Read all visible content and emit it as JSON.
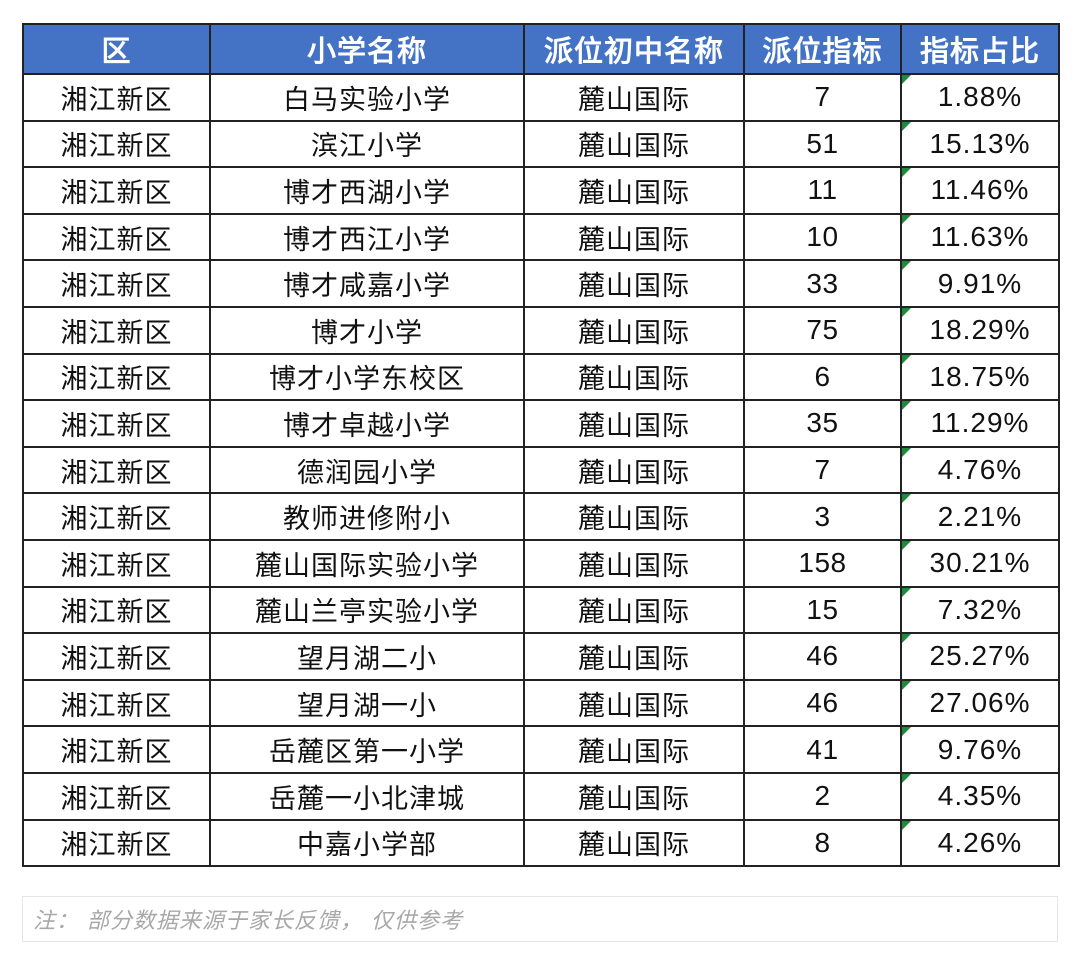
{
  "table": {
    "headers": [
      "区",
      "小学名称",
      "派位初中名称",
      "派位指标",
      "指标占比"
    ],
    "rows": [
      {
        "district": "湘江新区",
        "school": "白马实验小学",
        "middle": "麓山国际",
        "quota": "7",
        "ratio": "1.88%"
      },
      {
        "district": "湘江新区",
        "school": "滨江小学",
        "middle": "麓山国际",
        "quota": "51",
        "ratio": "15.13%"
      },
      {
        "district": "湘江新区",
        "school": "博才西湖小学",
        "middle": "麓山国际",
        "quota": "11",
        "ratio": "11.46%"
      },
      {
        "district": "湘江新区",
        "school": "博才西江小学",
        "middle": "麓山国际",
        "quota": "10",
        "ratio": "11.63%"
      },
      {
        "district": "湘江新区",
        "school": "博才咸嘉小学",
        "middle": "麓山国际",
        "quota": "33",
        "ratio": "9.91%"
      },
      {
        "district": "湘江新区",
        "school": "博才小学",
        "middle": "麓山国际",
        "quota": "75",
        "ratio": "18.29%"
      },
      {
        "district": "湘江新区",
        "school": "博才小学东校区",
        "middle": "麓山国际",
        "quota": "6",
        "ratio": "18.75%"
      },
      {
        "district": "湘江新区",
        "school": "博才卓越小学",
        "middle": "麓山国际",
        "quota": "35",
        "ratio": "11.29%"
      },
      {
        "district": "湘江新区",
        "school": "德润园小学",
        "middle": "麓山国际",
        "quota": "7",
        "ratio": "4.76%"
      },
      {
        "district": "湘江新区",
        "school": "教师进修附小",
        "middle": "麓山国际",
        "quota": "3",
        "ratio": "2.21%"
      },
      {
        "district": "湘江新区",
        "school": "麓山国际实验小学",
        "middle": "麓山国际",
        "quota": "158",
        "ratio": "30.21%"
      },
      {
        "district": "湘江新区",
        "school": "麓山兰亭实验小学",
        "middle": "麓山国际",
        "quota": "15",
        "ratio": "7.32%"
      },
      {
        "district": "湘江新区",
        "school": "望月湖二小",
        "middle": "麓山国际",
        "quota": "46",
        "ratio": "25.27%"
      },
      {
        "district": "湘江新区",
        "school": "望月湖一小",
        "middle": "麓山国际",
        "quota": "46",
        "ratio": "27.06%"
      },
      {
        "district": "湘江新区",
        "school": "岳麓区第一小学",
        "middle": "麓山国际",
        "quota": "41",
        "ratio": "9.76%"
      },
      {
        "district": "湘江新区",
        "school": "岳麓一小北津城",
        "middle": "麓山国际",
        "quota": "2",
        "ratio": "4.35%"
      },
      {
        "district": "湘江新区",
        "school": "中嘉小学部",
        "middle": "麓山国际",
        "quota": "8",
        "ratio": "4.26%"
      }
    ]
  },
  "note": "注： 部分数据来源于家长反馈， 仅供参考",
  "colors": {
    "header_bg": "#4472c4",
    "header_text": "#ffffff",
    "border": "#222222",
    "cell_marker": "#1e8a3a",
    "note_text": "#a8a8a8"
  }
}
